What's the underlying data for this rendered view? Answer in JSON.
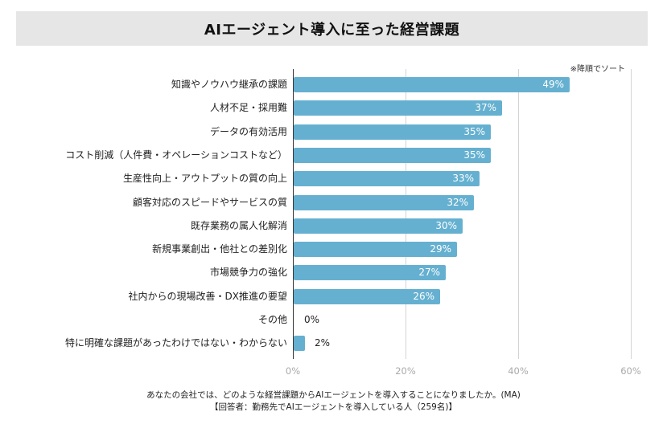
{
  "title": "AIエージェント導入に至った経営課題",
  "sort_note": "※降順でソート",
  "footer": {
    "question": "あなたの会社では、どのような経営課題からAIエージェントを導入することになりましたか。(MA)",
    "respondents": "【回答者：勤務先でAIエージェントを導入している人（259名)】"
  },
  "colors": {
    "bar": "#65b0d0",
    "title_bg": "#e6e6e6",
    "grid": "#d4d4d4",
    "axis": "#333333"
  },
  "chart_data": {
    "type": "bar",
    "orientation": "horizontal",
    "title": "AIエージェント導入に至った経営課題",
    "xlabel": "",
    "ylabel": "",
    "xlim": [
      0,
      60
    ],
    "xticks": [
      0,
      20,
      40,
      60
    ],
    "xtick_labels": [
      "0%",
      "20%",
      "40%",
      "60%"
    ],
    "grid": true,
    "unit": "%",
    "categories": [
      "知識やノウハウ継承の課題",
      "人材不足・採用難",
      "データの有効活用",
      "コスト削減（人件費・オペレーションコストなど）",
      "生産性向上・アウトプットの質の向上",
      "顧客対応のスピードやサービスの質",
      "既存業務の属人化解消",
      "新規事業創出・他社との差別化",
      "市場競争力の強化",
      "社内からの現場改善・DX推進の要望",
      "その他",
      "特に明確な課題があったわけではない・わからない"
    ],
    "values": [
      49,
      37,
      35,
      35,
      33,
      32,
      30,
      29,
      27,
      26,
      0,
      2
    ],
    "value_labels": [
      "49%",
      "37%",
      "35%",
      "35%",
      "33%",
      "32%",
      "30%",
      "29%",
      "27%",
      "26%",
      "0%",
      "2%"
    ]
  }
}
